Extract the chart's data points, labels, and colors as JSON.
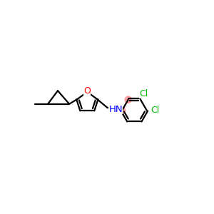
{
  "bg_color": "#ffffff",
  "bond_color": "#000000",
  "n_color": "#0000ff",
  "o_color": "#ff0000",
  "cl_color": "#00bb00",
  "highlight_color": "#ff8888",
  "line_width": 1.6,
  "dpi": 100,
  "figsize": [
    3.0,
    3.0
  ],
  "xlim": [
    0,
    10
  ],
  "ylim": [
    0,
    10
  ]
}
